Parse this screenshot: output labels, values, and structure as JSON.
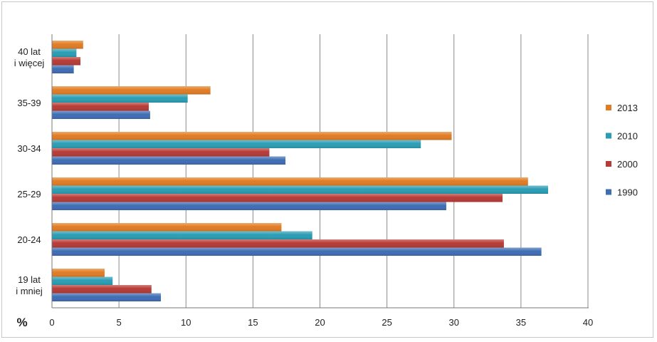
{
  "chart_data": {
    "type": "bar",
    "orientation": "horizontal",
    "categories": [
      "19 lat\ni mniej",
      "20-24",
      "25-29",
      "30-34",
      "35-39",
      "40 lat\ni więcej"
    ],
    "series": [
      {
        "name": "1990",
        "color": "#3e6db3",
        "values": [
          8.1,
          36.5,
          29.4,
          17.4,
          7.3,
          1.6
        ]
      },
      {
        "name": "2000",
        "color": "#b73a35",
        "values": [
          7.4,
          33.7,
          33.6,
          16.2,
          7.2,
          2.1
        ]
      },
      {
        "name": "2010",
        "color": "#2a9db4",
        "values": [
          4.5,
          19.4,
          37.0,
          27.5,
          10.1,
          1.8
        ]
      },
      {
        "name": "2013",
        "color": "#e07c24",
        "values": [
          3.9,
          17.1,
          35.5,
          29.8,
          11.8,
          2.3
        ]
      }
    ],
    "xlim": [
      0,
      40
    ],
    "xticks": [
      0,
      5,
      10,
      15,
      20,
      25,
      30,
      35,
      40
    ],
    "xlabel": "%",
    "title": "",
    "grid": "vertical",
    "legend_position": "right",
    "legend_order": [
      "2013",
      "2010",
      "2000",
      "1990"
    ]
  }
}
